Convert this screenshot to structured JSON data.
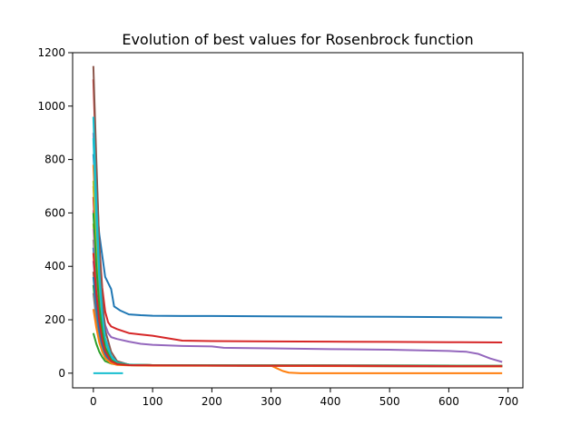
{
  "chart_data": {
    "type": "line",
    "title": "Evolution of best values for Rosenbrock function",
    "xlabel": "",
    "ylabel": "",
    "xlim": [
      -35,
      725
    ],
    "ylim": [
      -55,
      1200
    ],
    "xticks": [
      0,
      100,
      200,
      300,
      400,
      500,
      600,
      700
    ],
    "yticks": [
      0,
      200,
      400,
      600,
      800,
      1000,
      1200
    ],
    "xtick_labels": [
      "0",
      "100",
      "200",
      "300",
      "400",
      "500",
      "600",
      "700"
    ],
    "ytick_labels": [
      "0",
      "200",
      "400",
      "600",
      "800",
      "1000",
      "1200"
    ],
    "grid": false,
    "legend": "none",
    "series": [
      {
        "color": "#1f77b4",
        "x": [
          0,
          5,
          10,
          20,
          30,
          35,
          45,
          60,
          80,
          100,
          150,
          200,
          300,
          400,
          500,
          600,
          690
        ],
        "y": [
          820,
          640,
          520,
          360,
          315,
          250,
          235,
          220,
          217,
          215,
          214,
          214,
          213,
          212,
          211,
          210,
          208
        ]
      },
      {
        "color": "#ff7f0e",
        "x": [
          0,
          5,
          10,
          15,
          20,
          30,
          40,
          60,
          100,
          200,
          280,
          290,
          300,
          310,
          320,
          330,
          350,
          500,
          690
        ],
        "y": [
          700,
          480,
          300,
          180,
          110,
          60,
          40,
          32,
          30,
          30,
          30,
          30,
          28,
          18,
          8,
          2,
          0,
          0,
          0
        ]
      },
      {
        "color": "#2ca02c",
        "x": [
          0,
          5,
          10,
          15,
          20,
          30,
          40,
          60,
          100,
          300,
          690
        ],
        "y": [
          150,
          110,
          80,
          60,
          45,
          36,
          32,
          30,
          30,
          29,
          28
        ]
      },
      {
        "color": "#d62728",
        "x": [
          0,
          5,
          10,
          15,
          20,
          25,
          30,
          40,
          60,
          80,
          100,
          150,
          200,
          300,
          400,
          500,
          600,
          690
        ],
        "y": [
          1100,
          760,
          480,
          320,
          230,
          190,
          175,
          165,
          150,
          145,
          140,
          122,
          120,
          119,
          118,
          117,
          116,
          115
        ]
      },
      {
        "color": "#9467bd",
        "x": [
          0,
          5,
          10,
          15,
          20,
          25,
          30,
          40,
          60,
          80,
          100,
          150,
          200,
          220,
          300,
          400,
          500,
          600,
          630,
          650,
          670,
          690
        ],
        "y": [
          900,
          600,
          380,
          250,
          180,
          150,
          135,
          128,
          118,
          110,
          106,
          102,
          100,
          95,
          93,
          90,
          88,
          83,
          80,
          72,
          55,
          42
        ]
      },
      {
        "color": "#8c564b",
        "x": [
          0,
          5,
          10,
          15,
          20,
          30,
          40,
          60,
          100,
          300,
          690
        ],
        "y": [
          1150,
          800,
          480,
          280,
          160,
          80,
          45,
          32,
          30,
          30,
          28
        ]
      },
      {
        "color": "#e377c2",
        "x": [
          0,
          5,
          10,
          15,
          20,
          30,
          40,
          60,
          100,
          690
        ],
        "y": [
          610,
          400,
          250,
          160,
          100,
          55,
          38,
          32,
          30,
          28
        ]
      },
      {
        "color": "#7f7f7f",
        "x": [
          0,
          5,
          10,
          15,
          20,
          30,
          40,
          60,
          100,
          690
        ],
        "y": [
          500,
          340,
          220,
          140,
          90,
          50,
          36,
          31,
          30,
          28
        ]
      },
      {
        "color": "#bcbd22",
        "x": [
          0,
          5,
          10,
          15,
          20,
          30,
          40,
          60,
          100,
          690
        ],
        "y": [
          560,
          380,
          240,
          150,
          95,
          52,
          37,
          31,
          30,
          27
        ]
      },
      {
        "color": "#17becf",
        "x": [
          0,
          5,
          10,
          15,
          20,
          30,
          40,
          60,
          100,
          690
        ],
        "y": [
          960,
          640,
          380,
          220,
          130,
          65,
          40,
          32,
          30,
          27
        ]
      },
      {
        "color": "#1f77b4",
        "x": [
          0,
          5,
          10,
          15,
          20,
          30,
          40,
          60,
          100,
          690
        ],
        "y": [
          470,
          320,
          200,
          130,
          85,
          45,
          34,
          30,
          29,
          26
        ]
      },
      {
        "color": "#ff7f0e",
        "x": [
          0,
          5,
          10,
          15,
          20,
          30,
          40,
          60,
          100,
          690
        ],
        "y": [
          780,
          520,
          320,
          190,
          110,
          55,
          38,
          31,
          30,
          27
        ]
      },
      {
        "color": "#2ca02c",
        "x": [
          0,
          5,
          10,
          15,
          20,
          30,
          40,
          60,
          100,
          690
        ],
        "y": [
          330,
          220,
          140,
          95,
          65,
          40,
          33,
          30,
          29,
          26
        ]
      },
      {
        "color": "#d62728",
        "x": [
          0,
          5,
          10,
          15,
          20,
          30,
          40,
          60,
          100,
          690
        ],
        "y": [
          660,
          440,
          280,
          170,
          100,
          52,
          37,
          31,
          30,
          27
        ]
      },
      {
        "color": "#9467bd",
        "x": [
          0,
          5,
          10,
          15,
          20,
          30,
          40,
          60,
          100,
          690
        ],
        "y": [
          420,
          290,
          190,
          120,
          80,
          44,
          34,
          30,
          29,
          26
        ]
      },
      {
        "color": "#8c564b",
        "x": [
          0,
          5,
          10,
          15,
          20,
          30,
          40,
          60,
          100,
          690
        ],
        "y": [
          380,
          260,
          170,
          110,
          72,
          42,
          33,
          30,
          29,
          26
        ]
      },
      {
        "color": "#e377c2",
        "x": [
          0,
          5,
          10,
          15,
          20,
          30,
          40,
          60,
          100,
          690
        ],
        "y": [
          540,
          360,
          230,
          145,
          92,
          50,
          36,
          31,
          30,
          27
        ]
      },
      {
        "color": "#7f7f7f",
        "x": [
          0,
          5,
          10,
          15,
          20,
          30,
          40,
          60,
          100,
          690
        ],
        "y": [
          300,
          200,
          130,
          88,
          60,
          38,
          32,
          30,
          29,
          25
        ]
      },
      {
        "color": "#bcbd22",
        "x": [
          0,
          5,
          10,
          15,
          20,
          30,
          40,
          60,
          100,
          690
        ],
        "y": [
          720,
          480,
          300,
          180,
          105,
          54,
          37,
          31,
          30,
          27
        ]
      },
      {
        "color": "#17becf",
        "x": [
          0,
          5,
          10,
          15,
          20,
          30,
          40,
          60,
          100,
          690
        ],
        "y": [
          880,
          580,
          350,
          210,
          120,
          60,
          39,
          32,
          30,
          27
        ]
      },
      {
        "color": "#1f77b4",
        "x": [
          0,
          5,
          10,
          15,
          20,
          30,
          40,
          60,
          100,
          690
        ],
        "y": [
          360,
          250,
          160,
          105,
          70,
          41,
          33,
          30,
          29,
          25
        ]
      },
      {
        "color": "#ff7f0e",
        "x": [
          0,
          5,
          10,
          15,
          20,
          30,
          40,
          60,
          100,
          690
        ],
        "y": [
          240,
          170,
          115,
          80,
          56,
          37,
          31,
          29,
          28,
          25
        ]
      },
      {
        "color": "#2ca02c",
        "x": [
          0,
          5,
          10,
          15,
          20,
          30,
          40,
          60,
          100,
          690
        ],
        "y": [
          600,
          400,
          250,
          155,
          96,
          50,
          36,
          31,
          30,
          27
        ]
      },
      {
        "color": "#d62728",
        "x": [
          0,
          5,
          10,
          15,
          20,
          30,
          40,
          60,
          100,
          690
        ],
        "y": [
          450,
          300,
          195,
          125,
          82,
          45,
          34,
          30,
          29,
          26
        ]
      },
      {
        "color": "#17becf",
        "x": [
          0,
          10,
          20,
          30,
          40,
          50
        ],
        "y": [
          0,
          0,
          0,
          0,
          0,
          0
        ]
      }
    ]
  }
}
